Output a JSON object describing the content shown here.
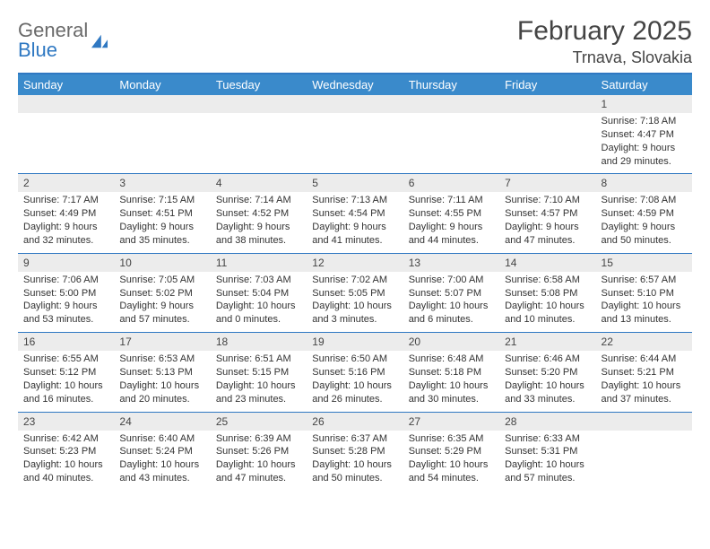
{
  "brand": {
    "general": "General",
    "blue": "Blue"
  },
  "title": "February 2025",
  "location": "Trnava, Slovakia",
  "colors": {
    "accent": "#2f78c2",
    "header_bg": "#3a8acb",
    "header_fg": "#ffffff",
    "row_num_bg": "#ececec",
    "text": "#333333",
    "logo_gray": "#6a6a6a"
  },
  "day_labels": [
    "Sunday",
    "Monday",
    "Tuesday",
    "Wednesday",
    "Thursday",
    "Friday",
    "Saturday"
  ],
  "weeks": [
    [
      null,
      null,
      null,
      null,
      null,
      null,
      {
        "n": "1",
        "sr": "Sunrise: 7:18 AM",
        "ss": "Sunset: 4:47 PM",
        "dl1": "Daylight: 9 hours",
        "dl2": "and 29 minutes."
      }
    ],
    [
      {
        "n": "2",
        "sr": "Sunrise: 7:17 AM",
        "ss": "Sunset: 4:49 PM",
        "dl1": "Daylight: 9 hours",
        "dl2": "and 32 minutes."
      },
      {
        "n": "3",
        "sr": "Sunrise: 7:15 AM",
        "ss": "Sunset: 4:51 PM",
        "dl1": "Daylight: 9 hours",
        "dl2": "and 35 minutes."
      },
      {
        "n": "4",
        "sr": "Sunrise: 7:14 AM",
        "ss": "Sunset: 4:52 PM",
        "dl1": "Daylight: 9 hours",
        "dl2": "and 38 minutes."
      },
      {
        "n": "5",
        "sr": "Sunrise: 7:13 AM",
        "ss": "Sunset: 4:54 PM",
        "dl1": "Daylight: 9 hours",
        "dl2": "and 41 minutes."
      },
      {
        "n": "6",
        "sr": "Sunrise: 7:11 AM",
        "ss": "Sunset: 4:55 PM",
        "dl1": "Daylight: 9 hours",
        "dl2": "and 44 minutes."
      },
      {
        "n": "7",
        "sr": "Sunrise: 7:10 AM",
        "ss": "Sunset: 4:57 PM",
        "dl1": "Daylight: 9 hours",
        "dl2": "and 47 minutes."
      },
      {
        "n": "8",
        "sr": "Sunrise: 7:08 AM",
        "ss": "Sunset: 4:59 PM",
        "dl1": "Daylight: 9 hours",
        "dl2": "and 50 minutes."
      }
    ],
    [
      {
        "n": "9",
        "sr": "Sunrise: 7:06 AM",
        "ss": "Sunset: 5:00 PM",
        "dl1": "Daylight: 9 hours",
        "dl2": "and 53 minutes."
      },
      {
        "n": "10",
        "sr": "Sunrise: 7:05 AM",
        "ss": "Sunset: 5:02 PM",
        "dl1": "Daylight: 9 hours",
        "dl2": "and 57 minutes."
      },
      {
        "n": "11",
        "sr": "Sunrise: 7:03 AM",
        "ss": "Sunset: 5:04 PM",
        "dl1": "Daylight: 10 hours",
        "dl2": "and 0 minutes."
      },
      {
        "n": "12",
        "sr": "Sunrise: 7:02 AM",
        "ss": "Sunset: 5:05 PM",
        "dl1": "Daylight: 10 hours",
        "dl2": "and 3 minutes."
      },
      {
        "n": "13",
        "sr": "Sunrise: 7:00 AM",
        "ss": "Sunset: 5:07 PM",
        "dl1": "Daylight: 10 hours",
        "dl2": "and 6 minutes."
      },
      {
        "n": "14",
        "sr": "Sunrise: 6:58 AM",
        "ss": "Sunset: 5:08 PM",
        "dl1": "Daylight: 10 hours",
        "dl2": "and 10 minutes."
      },
      {
        "n": "15",
        "sr": "Sunrise: 6:57 AM",
        "ss": "Sunset: 5:10 PM",
        "dl1": "Daylight: 10 hours",
        "dl2": "and 13 minutes."
      }
    ],
    [
      {
        "n": "16",
        "sr": "Sunrise: 6:55 AM",
        "ss": "Sunset: 5:12 PM",
        "dl1": "Daylight: 10 hours",
        "dl2": "and 16 minutes."
      },
      {
        "n": "17",
        "sr": "Sunrise: 6:53 AM",
        "ss": "Sunset: 5:13 PM",
        "dl1": "Daylight: 10 hours",
        "dl2": "and 20 minutes."
      },
      {
        "n": "18",
        "sr": "Sunrise: 6:51 AM",
        "ss": "Sunset: 5:15 PM",
        "dl1": "Daylight: 10 hours",
        "dl2": "and 23 minutes."
      },
      {
        "n": "19",
        "sr": "Sunrise: 6:50 AM",
        "ss": "Sunset: 5:16 PM",
        "dl1": "Daylight: 10 hours",
        "dl2": "and 26 minutes."
      },
      {
        "n": "20",
        "sr": "Sunrise: 6:48 AM",
        "ss": "Sunset: 5:18 PM",
        "dl1": "Daylight: 10 hours",
        "dl2": "and 30 minutes."
      },
      {
        "n": "21",
        "sr": "Sunrise: 6:46 AM",
        "ss": "Sunset: 5:20 PM",
        "dl1": "Daylight: 10 hours",
        "dl2": "and 33 minutes."
      },
      {
        "n": "22",
        "sr": "Sunrise: 6:44 AM",
        "ss": "Sunset: 5:21 PM",
        "dl1": "Daylight: 10 hours",
        "dl2": "and 37 minutes."
      }
    ],
    [
      {
        "n": "23",
        "sr": "Sunrise: 6:42 AM",
        "ss": "Sunset: 5:23 PM",
        "dl1": "Daylight: 10 hours",
        "dl2": "and 40 minutes."
      },
      {
        "n": "24",
        "sr": "Sunrise: 6:40 AM",
        "ss": "Sunset: 5:24 PM",
        "dl1": "Daylight: 10 hours",
        "dl2": "and 43 minutes."
      },
      {
        "n": "25",
        "sr": "Sunrise: 6:39 AM",
        "ss": "Sunset: 5:26 PM",
        "dl1": "Daylight: 10 hours",
        "dl2": "and 47 minutes."
      },
      {
        "n": "26",
        "sr": "Sunrise: 6:37 AM",
        "ss": "Sunset: 5:28 PM",
        "dl1": "Daylight: 10 hours",
        "dl2": "and 50 minutes."
      },
      {
        "n": "27",
        "sr": "Sunrise: 6:35 AM",
        "ss": "Sunset: 5:29 PM",
        "dl1": "Daylight: 10 hours",
        "dl2": "and 54 minutes."
      },
      {
        "n": "28",
        "sr": "Sunrise: 6:33 AM",
        "ss": "Sunset: 5:31 PM",
        "dl1": "Daylight: 10 hours",
        "dl2": "and 57 minutes."
      },
      null
    ]
  ]
}
